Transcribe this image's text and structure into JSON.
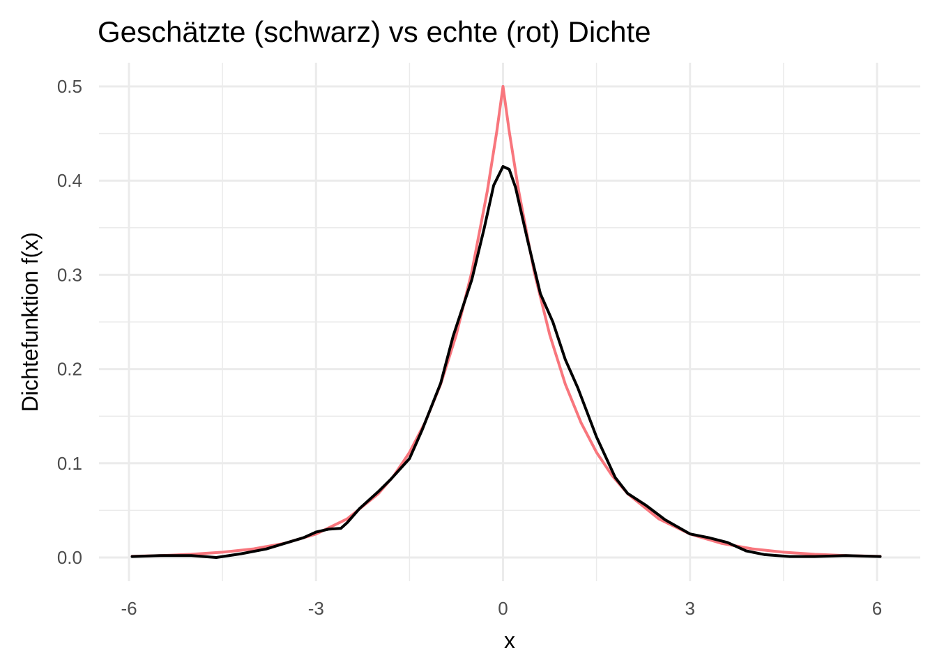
{
  "chart_data": {
    "type": "line",
    "title": "Geschätzte (schwarz) vs echte (rot) Dichte",
    "xlabel": "x",
    "ylabel": "Dichtefunktion f(x)",
    "xlim": [
      -6.1,
      6.1
    ],
    "ylim": [
      0,
      0.5
    ],
    "x_ticks": [
      -6,
      -3,
      0,
      3,
      6
    ],
    "x_tick_labels": [
      "-6",
      "-3",
      "0",
      "3",
      "6"
    ],
    "y_ticks": [
      0.0,
      0.1,
      0.2,
      0.3,
      0.4,
      0.5
    ],
    "y_tick_labels": [
      "0.0",
      "0.1",
      "0.2",
      "0.3",
      "0.4",
      "0.5"
    ],
    "grid": true,
    "legend": "none",
    "series": [
      {
        "color": "#f8767d",
        "x": [
          -5.95,
          -5.5,
          -5.0,
          -4.5,
          -4.0,
          -3.5,
          -3.0,
          -2.5,
          -2.0,
          -1.75,
          -1.5,
          -1.25,
          -1.0,
          -0.75,
          -0.5,
          -0.25,
          -0.1,
          0.0,
          0.1,
          0.25,
          0.5,
          0.75,
          1.0,
          1.25,
          1.5,
          1.75,
          2.0,
          2.5,
          3.0,
          3.5,
          4.0,
          4.5,
          5.0,
          5.5,
          6.05
        ],
        "y": [
          0.0013,
          0.002,
          0.0034,
          0.0056,
          0.0092,
          0.0151,
          0.0249,
          0.041,
          0.0677,
          0.0869,
          0.1116,
          0.1433,
          0.1839,
          0.2362,
          0.3033,
          0.3894,
          0.4524,
          0.5,
          0.4524,
          0.3894,
          0.3033,
          0.2362,
          0.1839,
          0.1433,
          0.1116,
          0.0869,
          0.0677,
          0.041,
          0.0249,
          0.0151,
          0.0092,
          0.0056,
          0.0034,
          0.002,
          0.0012
        ]
      },
      {
        "color": "#000000",
        "x": [
          -5.95,
          -5.5,
          -5.0,
          -4.6,
          -4.2,
          -3.8,
          -3.5,
          -3.2,
          -3.0,
          -2.8,
          -2.6,
          -2.5,
          -2.3,
          -2.0,
          -1.8,
          -1.5,
          -1.3,
          -1.0,
          -0.8,
          -0.5,
          -0.3,
          -0.15,
          0.0,
          0.1,
          0.2,
          0.4,
          0.6,
          0.8,
          1.0,
          1.2,
          1.5,
          1.8,
          2.0,
          2.3,
          2.6,
          3.0,
          3.3,
          3.6,
          3.9,
          4.2,
          4.6,
          5.0,
          5.5,
          6.05
        ],
        "y": [
          0.001,
          0.002,
          0.002,
          0.0,
          0.004,
          0.009,
          0.015,
          0.021,
          0.027,
          0.03,
          0.031,
          0.037,
          0.052,
          0.07,
          0.083,
          0.105,
          0.135,
          0.185,
          0.235,
          0.295,
          0.35,
          0.395,
          0.415,
          0.412,
          0.393,
          0.335,
          0.28,
          0.25,
          0.21,
          0.18,
          0.128,
          0.085,
          0.068,
          0.055,
          0.04,
          0.025,
          0.021,
          0.016,
          0.007,
          0.003,
          0.001,
          0.001,
          0.002,
          0.001
        ]
      }
    ]
  }
}
